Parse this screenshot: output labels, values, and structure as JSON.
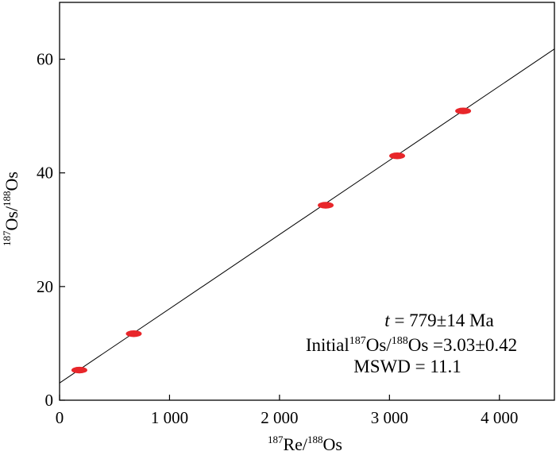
{
  "chart_data": {
    "type": "scatter",
    "xlabel": {
      "sup": "187",
      "main": "Re/",
      "sup2": "188",
      "tail": "Os"
    },
    "ylabel": {
      "sup": "187",
      "main": "Os/",
      "sup2": "188",
      "tail": "Os"
    },
    "xlim": [
      0,
      4500
    ],
    "ylim": [
      0,
      70
    ],
    "x_ticks": [
      0,
      1000,
      2000,
      3000,
      4000
    ],
    "x_tick_labels": [
      "0",
      "1 000",
      "2 000",
      "3 000",
      "4 000"
    ],
    "y_ticks": [
      0,
      20,
      40,
      60
    ],
    "y_tick_labels": [
      "0",
      "20",
      "40",
      "60"
    ],
    "points": [
      {
        "x": 180,
        "y": 5.3
      },
      {
        "x": 675,
        "y": 11.7
      },
      {
        "x": 2420,
        "y": 34.3
      },
      {
        "x": 3070,
        "y": 43.0
      },
      {
        "x": 3670,
        "y": 50.9
      }
    ],
    "regression_line": {
      "intercept": 3.03,
      "slope": 0.01306
    },
    "point_color": "#e8262a",
    "grid": false,
    "annotations": {
      "age": {
        "italic": "t",
        "text": " = 779±14 Ma"
      },
      "initial": {
        "prefix": "Initial",
        "sup1": "187",
        "mid": "Os/",
        "sup2": "188",
        "tail": "Os =3.03±0.42"
      },
      "mswd": "MSWD = 11.1"
    }
  }
}
